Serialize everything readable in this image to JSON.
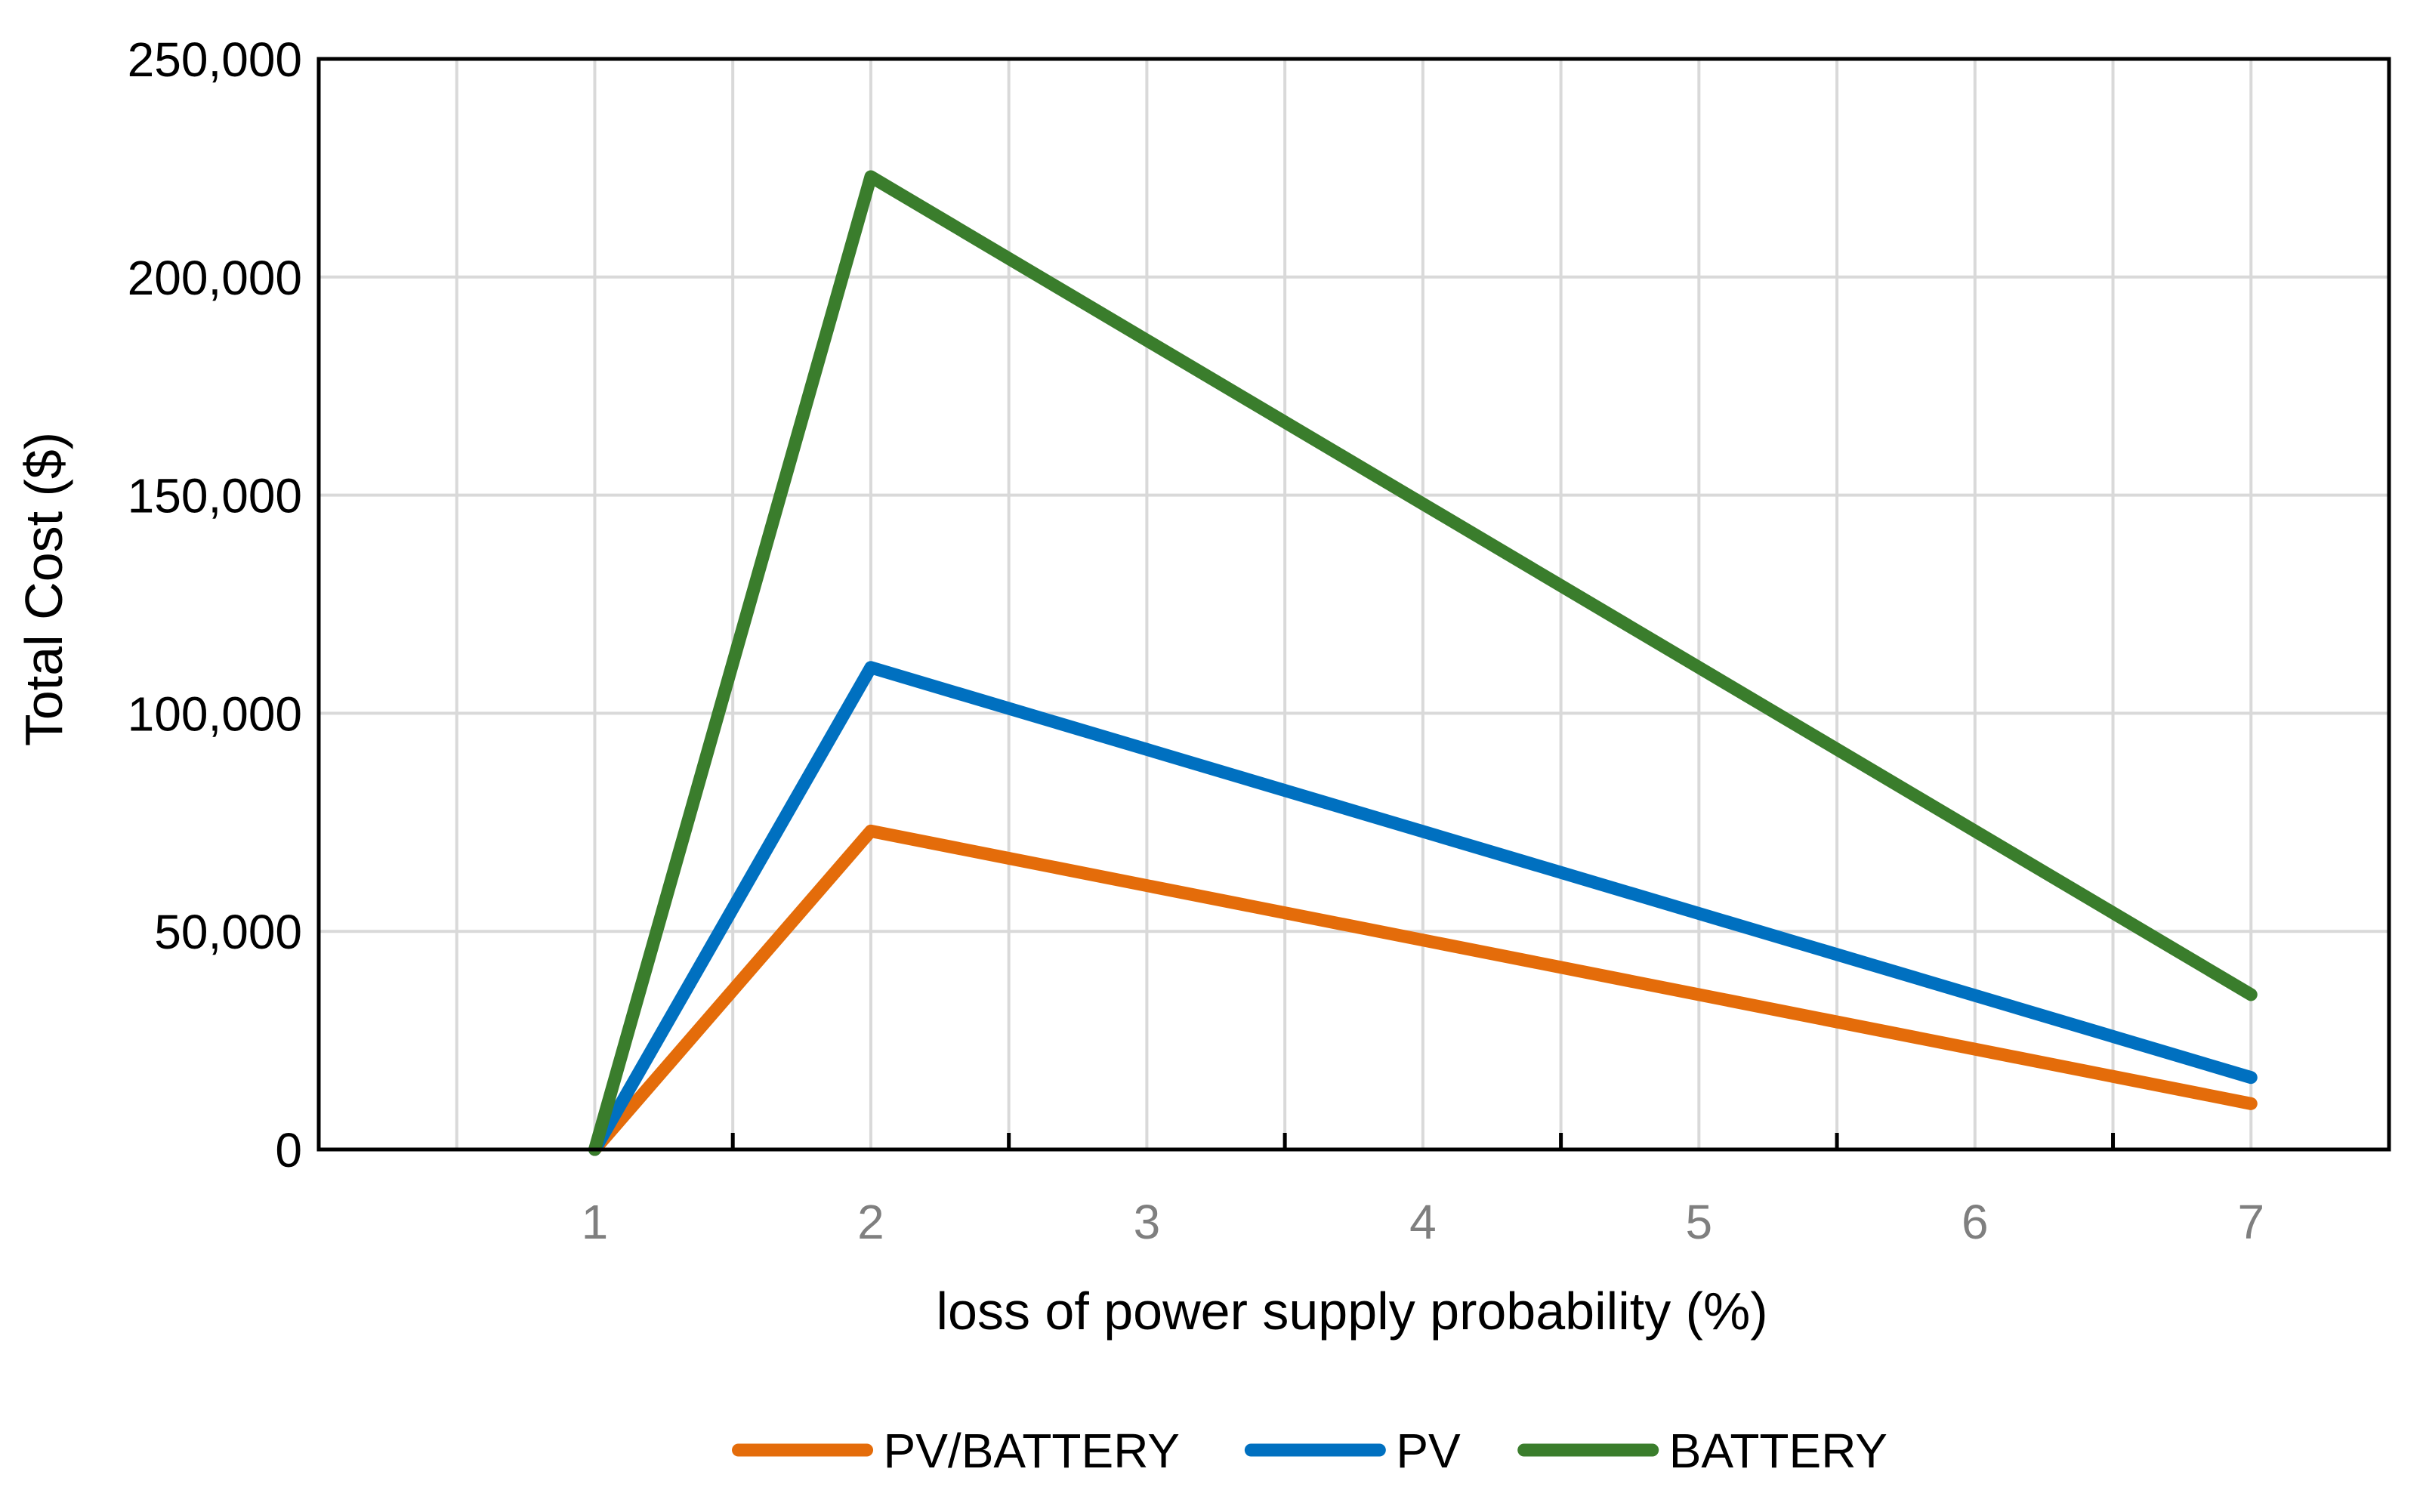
{
  "chart_data": {
    "type": "line",
    "title": "",
    "xlabel": "loss of power supply probability (%)",
    "ylabel": "Total Cost ($)",
    "x": [
      1,
      2,
      7
    ],
    "xticks": [
      1,
      2,
      3,
      4,
      5,
      6,
      7
    ],
    "xlim": [
      0,
      7.5
    ],
    "ylim": [
      0,
      250000
    ],
    "yticks": [
      0,
      50000,
      100000,
      150000,
      200000,
      250000
    ],
    "ytick_labels": [
      "0",
      "50,000",
      "100,000",
      "150,000",
      "200,000",
      "250,000"
    ],
    "grid": true,
    "legend_position": "bottom-center",
    "series": [
      {
        "name": "PV/BATTERY",
        "color": "#E46C0A",
        "values": [
          0,
          73000,
          10500
        ]
      },
      {
        "name": "PV",
        "color": "#0070C0",
        "values": [
          0,
          110500,
          16500
        ]
      },
      {
        "name": "BATTERY",
        "color": "#3A7D2C",
        "values": [
          0,
          223000,
          35500
        ]
      }
    ],
    "colors": {
      "axis": "#000000",
      "grid": "#D9D9D9",
      "xtick_text": "#7F7F7F",
      "ytick_text": "#000000"
    }
  }
}
